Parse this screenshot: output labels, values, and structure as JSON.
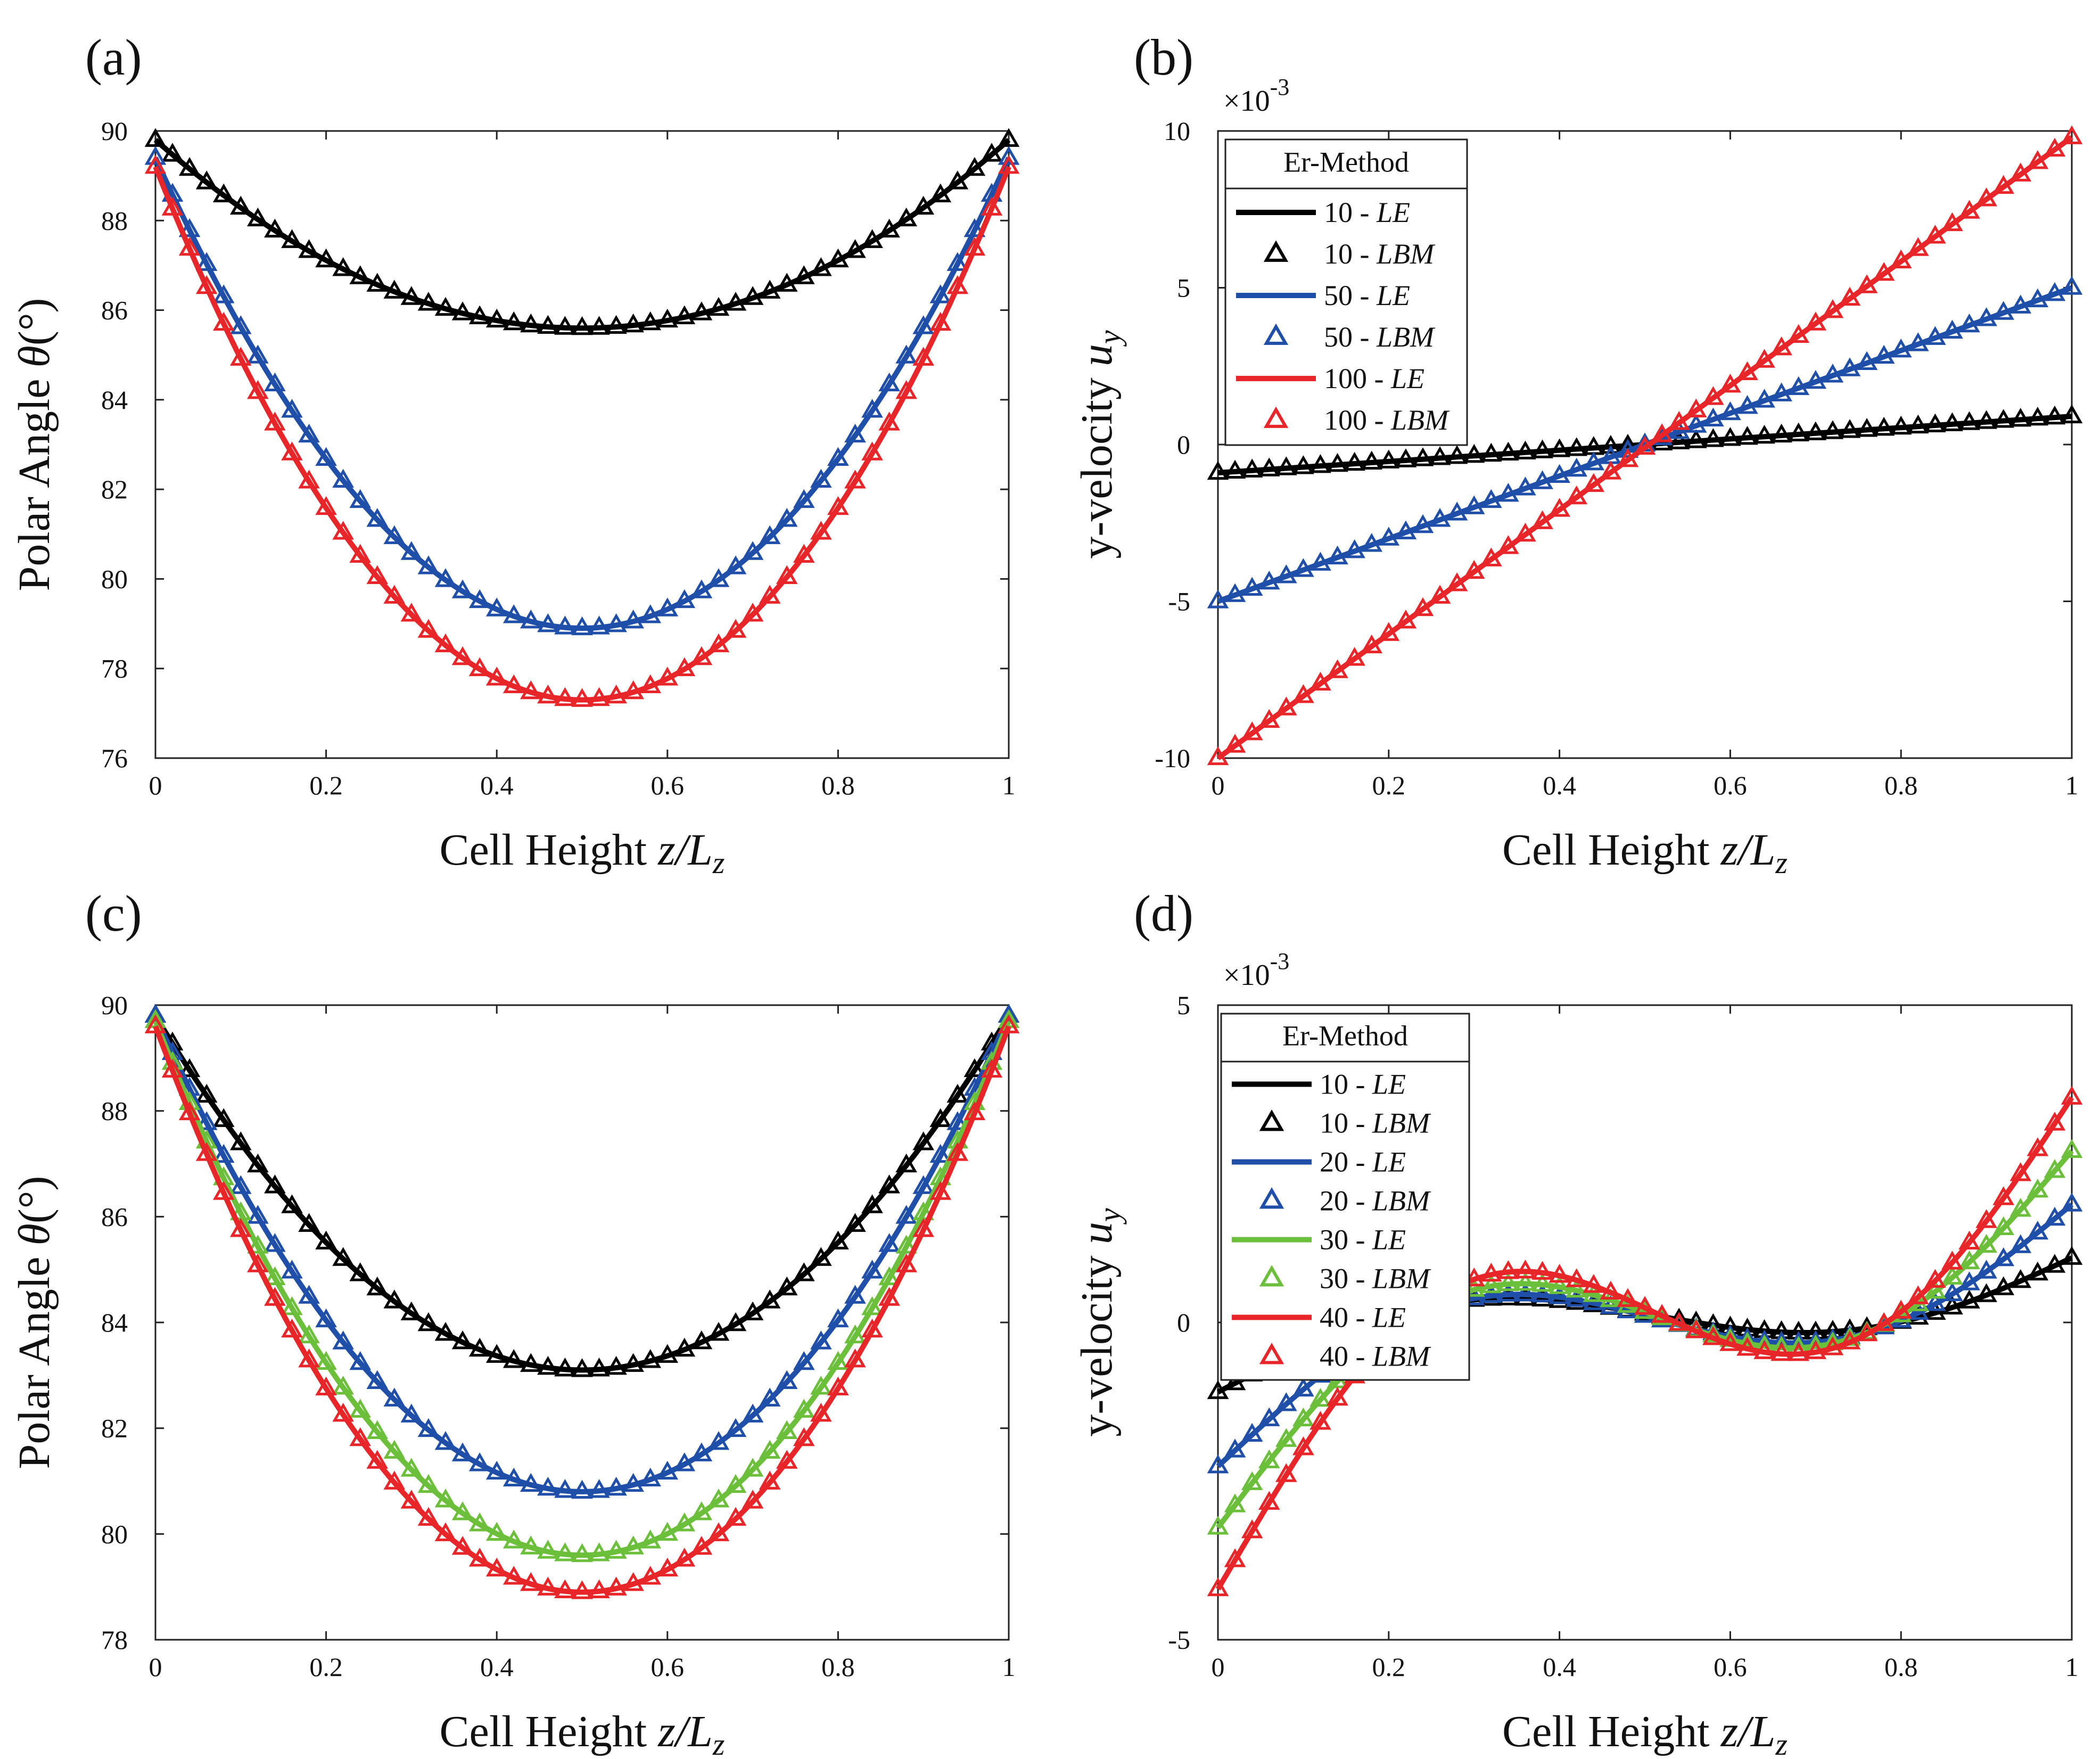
{
  "chart_data": [
    {
      "panel": "(a)",
      "type": "line",
      "xlabel_text": "Cell Height ",
      "xlabel_var": "z/L",
      "xlabel_sub": "z",
      "ylabel_text": "Polar Angle ",
      "ylabel_var": "θ",
      "ylabel_unit": "(°)",
      "xlim": [
        0,
        1
      ],
      "ylim": [
        76,
        90
      ],
      "xticks": [
        0,
        0.2,
        0.4,
        0.6,
        0.8,
        1
      ],
      "xtick_labels": [
        "0",
        "0.2",
        "0.4",
        "0.6",
        "0.8",
        "1"
      ],
      "yticks": [
        76,
        78,
        80,
        82,
        84,
        86,
        88,
        90
      ],
      "ytick_labels": [
        "76",
        "78",
        "80",
        "82",
        "84",
        "86",
        "88",
        "90"
      ],
      "exponent": null,
      "legend": null,
      "series": [
        {
          "name": "Er 10",
          "color": "#000000",
          "model": "parabola",
          "end": 89.8,
          "center": 85.6,
          "n_markers": 51
        },
        {
          "name": "Er 50",
          "color": "#1f4fa8",
          "model": "parabola",
          "end": 89.4,
          "center": 78.9,
          "n_markers": 51
        },
        {
          "name": "Er 100",
          "color": "#e8262a",
          "model": "parabola",
          "end": 89.2,
          "center": 77.3,
          "n_markers": 51
        }
      ]
    },
    {
      "panel": "(b)",
      "type": "line",
      "xlabel_text": "Cell Height ",
      "xlabel_var": "z/L",
      "xlabel_sub": "z",
      "ylabel_text": "y-velocity ",
      "ylabel_var": "u",
      "ylabel_sub": "y",
      "xlim": [
        0,
        1
      ],
      "ylim": [
        -10,
        10
      ],
      "xticks": [
        0,
        0.2,
        0.4,
        0.6,
        0.8,
        1
      ],
      "xtick_labels": [
        "0",
        "0.2",
        "0.4",
        "0.6",
        "0.8",
        "1"
      ],
      "yticks": [
        -10,
        -5,
        0,
        5,
        10
      ],
      "ytick_labels": [
        "-10",
        "-5",
        "0",
        "5",
        "10"
      ],
      "exponent": {
        "base": "×10",
        "power": "-3"
      },
      "legend": {
        "title": "Er-Method",
        "entries": [
          {
            "label_num": "10 - ",
            "label_method": "LE",
            "kind": "line",
            "color": "#000000"
          },
          {
            "label_num": "10 - ",
            "label_method": "LBM",
            "kind": "marker",
            "color": "#000000"
          },
          {
            "label_num": "50 - ",
            "label_method": "LE",
            "kind": "line",
            "color": "#1f4fa8"
          },
          {
            "label_num": "50 - ",
            "label_method": "LBM",
            "kind": "marker",
            "color": "#1f4fa8"
          },
          {
            "label_num": "100 - ",
            "label_method": "LE",
            "kind": "line",
            "color": "#e8262a"
          },
          {
            "label_num": "100 - ",
            "label_method": "LBM",
            "kind": "marker",
            "color": "#e8262a"
          }
        ]
      },
      "series": [
        {
          "name": "Er 10",
          "color": "#000000",
          "model": "linear",
          "y0": -0.9,
          "y1": 0.9,
          "n_markers": 51
        },
        {
          "name": "Er 50",
          "color": "#1f4fa8",
          "model": "linear",
          "y0": -5.0,
          "y1": 5.0,
          "n_markers": 51
        },
        {
          "name": "Er 100",
          "color": "#e8262a",
          "model": "linear",
          "y0": -10.0,
          "y1": 9.8,
          "n_markers": 51
        }
      ]
    },
    {
      "panel": "(c)",
      "type": "line",
      "xlabel_text": "Cell Height ",
      "xlabel_var": "z/L",
      "xlabel_sub": "z",
      "ylabel_text": "Polar Angle ",
      "ylabel_var": "θ",
      "ylabel_unit": "(°)",
      "xlim": [
        0,
        1
      ],
      "ylim": [
        78,
        90
      ],
      "xticks": [
        0,
        0.2,
        0.4,
        0.6,
        0.8,
        1
      ],
      "xtick_labels": [
        "0",
        "0.2",
        "0.4",
        "0.6",
        "0.8",
        "1"
      ],
      "yticks": [
        78,
        80,
        82,
        84,
        86,
        88,
        90
      ],
      "ytick_labels": [
        "78",
        "80",
        "82",
        "84",
        "86",
        "88",
        "90"
      ],
      "exponent": null,
      "legend": null,
      "series": [
        {
          "name": "Er 10",
          "color": "#000000",
          "model": "parabola",
          "end": 89.8,
          "center": 83.1,
          "n_markers": 51
        },
        {
          "name": "Er 20",
          "color": "#1f4fa8",
          "model": "parabola",
          "end": 89.8,
          "center": 80.8,
          "n_markers": 51
        },
        {
          "name": "Er 30",
          "color": "#6bbf3a",
          "model": "parabola",
          "end": 89.7,
          "center": 79.6,
          "n_markers": 51
        },
        {
          "name": "Er 40",
          "color": "#e8262a",
          "model": "parabola",
          "end": 89.6,
          "center": 78.9,
          "n_markers": 51
        }
      ]
    },
    {
      "panel": "(d)",
      "type": "line",
      "xlabel_text": "Cell Height ",
      "xlabel_var": "z/L",
      "xlabel_sub": "z",
      "ylabel_text": "y-velocity ",
      "ylabel_var": "u",
      "ylabel_sub": "y",
      "xlim": [
        0,
        1
      ],
      "ylim": [
        -5,
        5
      ],
      "xticks": [
        0,
        0.2,
        0.4,
        0.6,
        0.8,
        1
      ],
      "xtick_labels": [
        "0",
        "0.2",
        "0.4",
        "0.6",
        "0.8",
        "1"
      ],
      "yticks": [
        -5,
        0,
        5
      ],
      "ytick_labels": [
        "-5",
        "0",
        "5"
      ],
      "exponent": {
        "base": "×10",
        "power": "-3"
      },
      "legend": {
        "title": "Er-Method",
        "entries": [
          {
            "label_num": "10 - ",
            "label_method": "LE",
            "kind": "line",
            "color": "#000000"
          },
          {
            "label_num": "10 - ",
            "label_method": "LBM",
            "kind": "marker",
            "color": "#000000"
          },
          {
            "label_num": "20 - ",
            "label_method": "LE",
            "kind": "line",
            "color": "#1f4fa8"
          },
          {
            "label_num": "20 - ",
            "label_method": "LBM",
            "kind": "marker",
            "color": "#1f4fa8"
          },
          {
            "label_num": "30 - ",
            "label_method": "LE",
            "kind": "line",
            "color": "#6bbf3a"
          },
          {
            "label_num": "30 - ",
            "label_method": "LBM",
            "kind": "marker",
            "color": "#6bbf3a"
          },
          {
            "label_num": "40 - ",
            "label_method": "LE",
            "kind": "line",
            "color": "#e8262a"
          },
          {
            "label_num": "40 - ",
            "label_method": "LBM",
            "kind": "marker",
            "color": "#e8262a"
          }
        ]
      },
      "series": [
        {
          "name": "Er 10",
          "color": "#000000",
          "model": "sine",
          "amp": 1.25,
          "start": -1.0,
          "end": 1.1,
          "n_markers": 51
        },
        {
          "name": "Er 20",
          "color": "#1f4fa8",
          "model": "sine",
          "amp": 2.15,
          "start": -2.1,
          "end": 2.0,
          "n_markers": 51
        },
        {
          "name": "Er 30",
          "color": "#6bbf3a",
          "model": "sine",
          "amp": 3.0,
          "start": -3.0,
          "end": 2.9,
          "n_markers": 51
        },
        {
          "name": "Er 40",
          "color": "#e8262a",
          "model": "sine",
          "amp": 3.9,
          "start": -3.9,
          "end": 3.8,
          "n_markers": 51
        }
      ]
    }
  ]
}
